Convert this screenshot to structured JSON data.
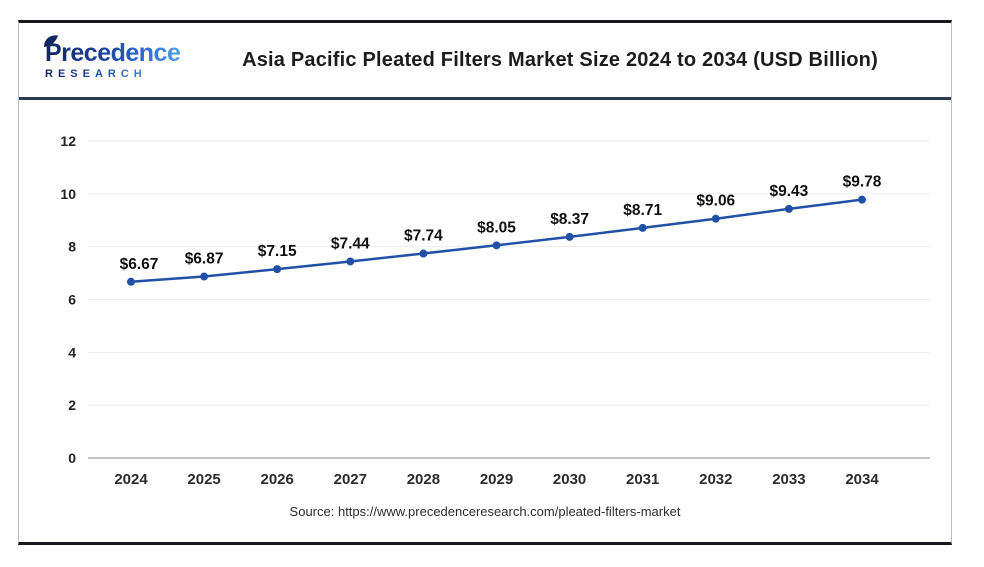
{
  "header": {
    "logo": {
      "brand": "Precedence",
      "sub": "RESEARCH"
    },
    "title": "Asia Pacific Pleated Filters Market Size 2024 to 2034 (USD Billion)"
  },
  "chart_data": {
    "type": "line",
    "title": "Asia Pacific Pleated Filters Market Size 2024 to 2034 (USD Billion)",
    "categories": [
      "2024",
      "2025",
      "2026",
      "2027",
      "2028",
      "2029",
      "2030",
      "2031",
      "2032",
      "2033",
      "2034"
    ],
    "values": [
      6.67,
      6.87,
      7.15,
      7.44,
      7.74,
      8.05,
      8.37,
      8.71,
      9.06,
      9.43,
      9.78
    ],
    "data_labels": [
      "$6.67",
      "$6.87",
      "$7.15",
      "$7.44",
      "$7.74",
      "$8.05",
      "$8.37",
      "$8.71",
      "$9.06",
      "$9.43",
      "$9.78"
    ],
    "xlabel": "",
    "ylabel": "",
    "ylim": [
      0,
      12
    ],
    "y_ticks": [
      0,
      2,
      4,
      6,
      8,
      10,
      12
    ],
    "grid": true,
    "legend": false,
    "line_color": "#2151a6",
    "marker_color": "#2151a6",
    "grid_color": "#ededed",
    "axis_line_color": "#c4c4c4",
    "label_color": "#101010"
  },
  "footer": {
    "source": "Source: https://www.precedenceresearch.com/pleated-filters-market"
  }
}
